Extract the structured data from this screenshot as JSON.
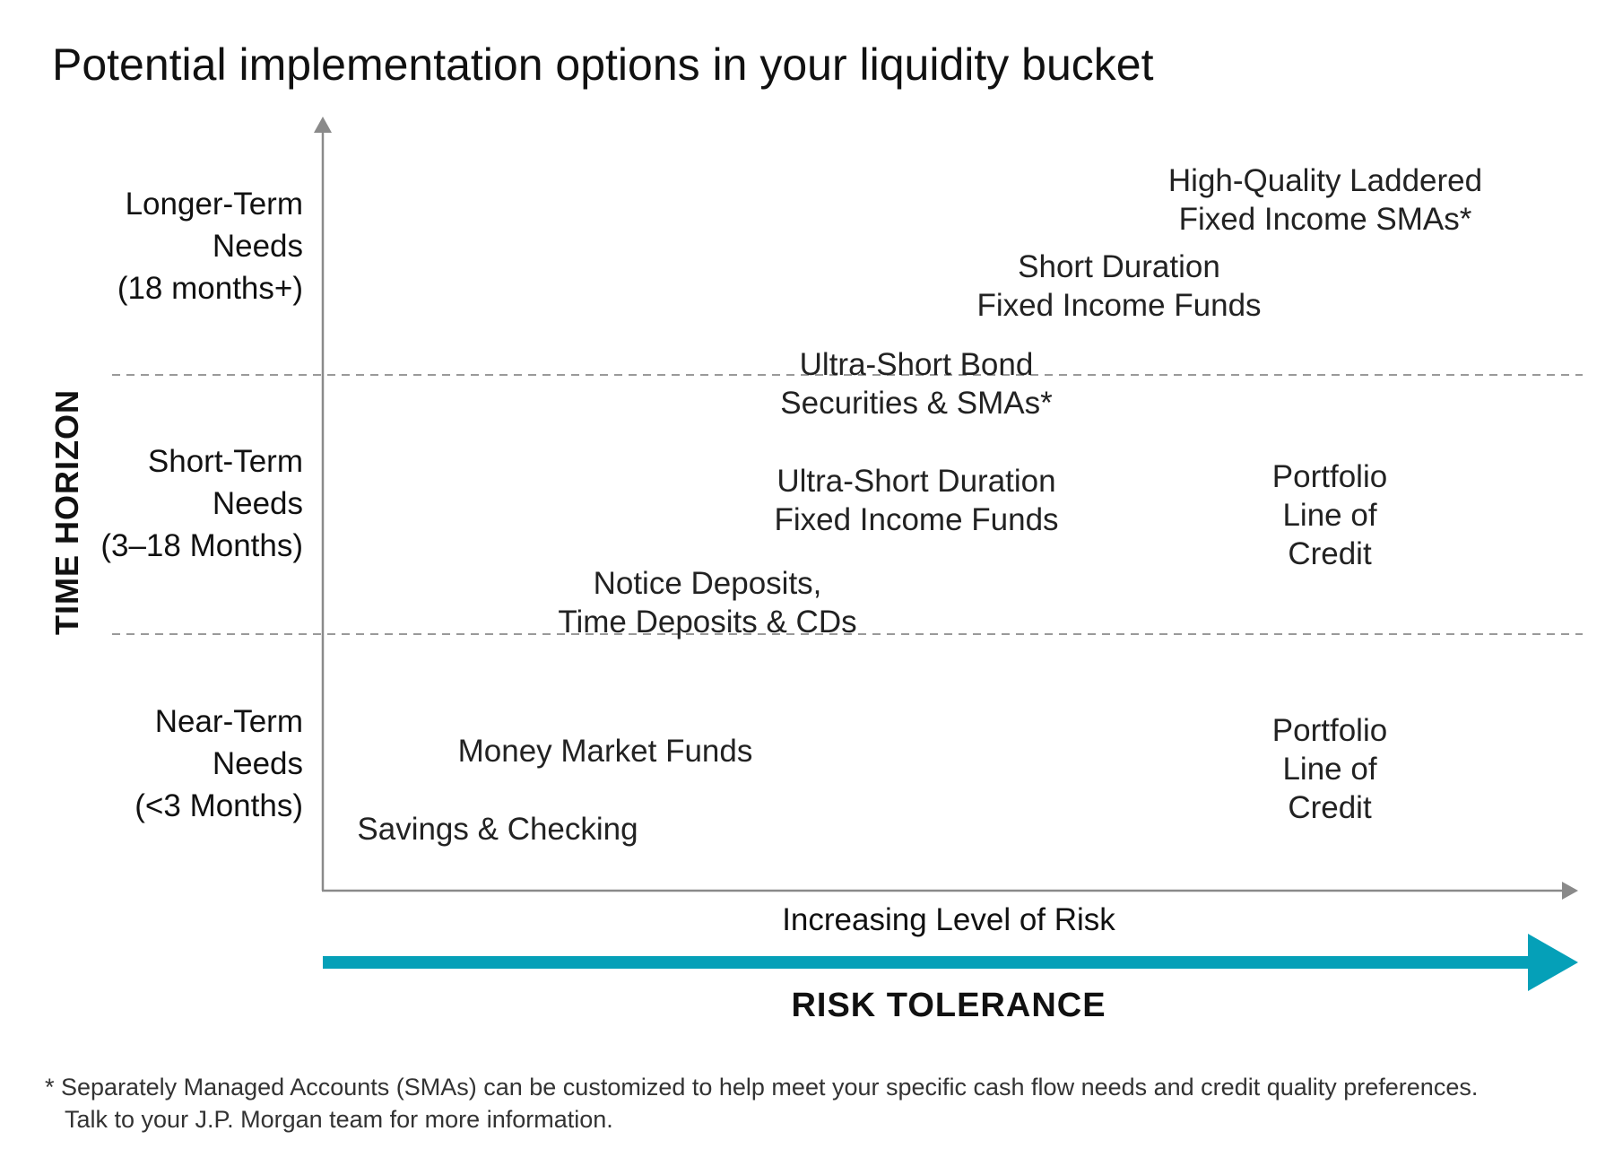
{
  "title": "Potential implementation options in your liquidity bucket",
  "y_axis": {
    "label": "TIME HORIZON",
    "rows": [
      {
        "lines": [
          "Longer-Term",
          "Needs",
          "(18 months+)"
        ]
      },
      {
        "lines": [
          "Short-Term",
          "Needs",
          "(3–18 Months)"
        ]
      },
      {
        "lines": [
          "Near-Term",
          "Needs",
          "(<3 Months)"
        ]
      }
    ]
  },
  "x_axis": {
    "label": "Increasing Level of Risk",
    "title": "RISK TOLERANCE"
  },
  "options": [
    {
      "lines": [
        "High-Quality Laddered",
        "Fixed Income SMAs*"
      ]
    },
    {
      "lines": [
        "Short Duration",
        "Fixed Income Funds"
      ]
    },
    {
      "lines": [
        "Ultra-Short Bond",
        "Securities & SMAs*"
      ]
    },
    {
      "lines": [
        "Ultra-Short Duration",
        "Fixed Income Funds"
      ]
    },
    {
      "lines": [
        "Portfolio",
        "Line of",
        "Credit"
      ]
    },
    {
      "lines": [
        "Notice Deposits,",
        "Time Deposits & CDs"
      ]
    },
    {
      "lines": [
        "Money Market Funds"
      ]
    },
    {
      "lines": [
        "Savings & Checking"
      ]
    },
    {
      "lines": [
        "Portfolio",
        "Line of",
        "Credit"
      ]
    }
  ],
  "footnote": {
    "line1": "* Separately Managed Accounts (SMAs) can be customized to help meet your specific cash flow needs and credit quality preferences.",
    "line2": "Talk to your J.P. Morgan team for more information."
  },
  "colors": {
    "axis": "#8a8a8a",
    "divider": "#9a9a9a",
    "risk_arrow": "#05a0b8",
    "text": "#1a1a1a"
  }
}
